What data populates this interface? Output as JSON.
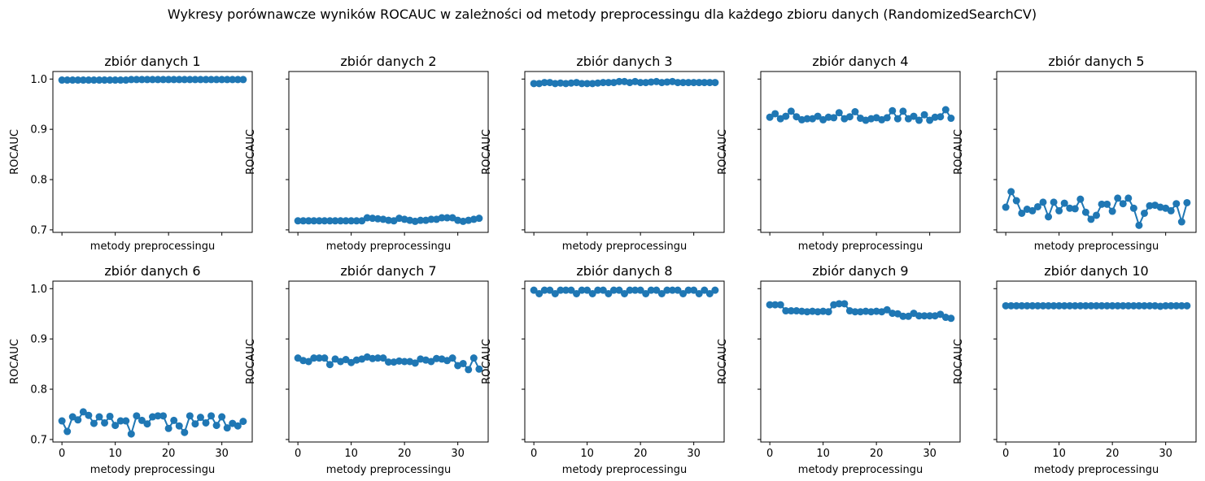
{
  "figure": {
    "suptitle": "Wykresy porównawcze wyników ROCAUC w zależności od metody preprocessingu dla każdego zbioru danych (RandomizedSearchCV)"
  },
  "colors": {
    "series": "#1f77b4",
    "axes": "#000000"
  },
  "chart_data": [
    {
      "type": "line",
      "title": "zbiór danych 1",
      "xlabel": "metody preprocessingu",
      "ylabel": "ROCAUC",
      "xlim": [
        -1.7,
        35.7
      ],
      "ylim": [
        0.695,
        1.015
      ],
      "xticks": [
        0,
        10,
        20,
        30
      ],
      "yticks": [
        0.7,
        0.8,
        0.9,
        1.0
      ],
      "marker": "o",
      "series": [
        {
          "values": [
            0.998,
            0.998,
            0.998,
            0.998,
            0.998,
            0.998,
            0.998,
            0.998,
            0.998,
            0.998,
            0.998,
            0.998,
            0.998,
            0.999,
            0.999,
            0.999,
            0.999,
            0.999,
            0.999,
            0.999,
            0.999,
            0.999,
            0.999,
            0.999,
            0.999,
            0.999,
            0.999,
            0.999,
            0.999,
            0.999,
            0.999,
            0.999,
            0.999,
            0.999,
            0.999
          ]
        }
      ]
    },
    {
      "type": "line",
      "title": "zbiór danych 2",
      "xlabel": "metody preprocessingu",
      "ylabel": "ROCAUC",
      "xlim": [
        -1.7,
        35.7
      ],
      "ylim": [
        0.695,
        1.015
      ],
      "xticks": [
        0,
        10,
        20,
        30
      ],
      "yticks": [
        0.7,
        0.8,
        0.9,
        1.0
      ],
      "marker": "o",
      "series": [
        {
          "values": [
            0.718,
            0.718,
            0.718,
            0.718,
            0.718,
            0.718,
            0.718,
            0.718,
            0.718,
            0.718,
            0.718,
            0.718,
            0.718,
            0.724,
            0.723,
            0.722,
            0.721,
            0.719,
            0.718,
            0.723,
            0.721,
            0.719,
            0.717,
            0.719,
            0.719,
            0.721,
            0.721,
            0.724,
            0.724,
            0.724,
            0.719,
            0.717,
            0.719,
            0.721,
            0.723
          ]
        }
      ]
    },
    {
      "type": "line",
      "title": "zbiór danych 3",
      "xlabel": "metody preprocessingu",
      "ylabel": "ROCAUC",
      "xlim": [
        -1.7,
        35.7
      ],
      "ylim": [
        0.695,
        1.015
      ],
      "xticks": [
        0,
        10,
        20,
        30
      ],
      "yticks": [
        0.7,
        0.8,
        0.9,
        1.0
      ],
      "marker": "o",
      "series": [
        {
          "values": [
            0.991,
            0.991,
            0.993,
            0.993,
            0.991,
            0.992,
            0.991,
            0.992,
            0.993,
            0.991,
            0.991,
            0.991,
            0.992,
            0.993,
            0.993,
            0.993,
            0.995,
            0.995,
            0.993,
            0.995,
            0.993,
            0.993,
            0.994,
            0.995,
            0.993,
            0.994,
            0.995,
            0.993,
            0.993,
            0.993,
            0.993,
            0.993,
            0.993,
            0.993,
            0.993
          ]
        }
      ]
    },
    {
      "type": "line",
      "title": "zbiór danych 4",
      "xlabel": "metody preprocessingu",
      "ylabel": "ROCAUC",
      "xlim": [
        -1.7,
        35.7
      ],
      "ylim": [
        0.695,
        1.015
      ],
      "xticks": [
        0,
        10,
        20,
        30
      ],
      "yticks": [
        0.7,
        0.8,
        0.9,
        1.0
      ],
      "marker": "o",
      "series": [
        {
          "values": [
            0.924,
            0.931,
            0.921,
            0.926,
            0.936,
            0.925,
            0.919,
            0.921,
            0.921,
            0.926,
            0.919,
            0.924,
            0.923,
            0.933,
            0.921,
            0.925,
            0.935,
            0.922,
            0.918,
            0.921,
            0.923,
            0.919,
            0.923,
            0.937,
            0.921,
            0.936,
            0.921,
            0.926,
            0.918,
            0.929,
            0.918,
            0.924,
            0.925,
            0.939,
            0.922
          ]
        }
      ]
    },
    {
      "type": "line",
      "title": "zbiór danych 5",
      "xlabel": "metody preprocessingu",
      "ylabel": "ROCAUC",
      "xlim": [
        -1.7,
        35.7
      ],
      "ylim": [
        0.695,
        1.015
      ],
      "xticks": [
        0,
        10,
        20,
        30
      ],
      "yticks": [
        0.7,
        0.8,
        0.9,
        1.0
      ],
      "marker": "o",
      "series": [
        {
          "values": [
            0.745,
            0.776,
            0.758,
            0.733,
            0.741,
            0.738,
            0.746,
            0.755,
            0.726,
            0.755,
            0.738,
            0.753,
            0.743,
            0.742,
            0.761,
            0.735,
            0.721,
            0.729,
            0.751,
            0.751,
            0.737,
            0.763,
            0.752,
            0.763,
            0.743,
            0.709,
            0.733,
            0.748,
            0.749,
            0.745,
            0.743,
            0.738,
            0.752,
            0.716,
            0.754
          ]
        }
      ]
    },
    {
      "type": "line",
      "title": "zbiór danych 6",
      "xlabel": "metody preprocessingu",
      "ylabel": "ROCAUC",
      "xlim": [
        -1.7,
        35.7
      ],
      "ylim": [
        0.695,
        1.015
      ],
      "xticks": [
        0,
        10,
        20,
        30
      ],
      "yticks": [
        0.7,
        0.8,
        0.9,
        1.0
      ],
      "marker": "o",
      "series": [
        {
          "values": [
            0.737,
            0.716,
            0.745,
            0.739,
            0.755,
            0.748,
            0.732,
            0.745,
            0.733,
            0.746,
            0.728,
            0.737,
            0.737,
            0.711,
            0.747,
            0.738,
            0.731,
            0.745,
            0.747,
            0.747,
            0.722,
            0.738,
            0.727,
            0.714,
            0.747,
            0.731,
            0.744,
            0.733,
            0.747,
            0.728,
            0.745,
            0.723,
            0.732,
            0.727,
            0.736
          ]
        }
      ]
    },
    {
      "type": "line",
      "title": "zbiór danych 7",
      "xlabel": "metody preprocessingu",
      "ylabel": "ROCAUC",
      "xlim": [
        -1.7,
        35.7
      ],
      "ylim": [
        0.695,
        1.015
      ],
      "xticks": [
        0,
        10,
        20,
        30
      ],
      "yticks": [
        0.7,
        0.8,
        0.9,
        1.0
      ],
      "marker": "o",
      "series": [
        {
          "values": [
            0.862,
            0.857,
            0.855,
            0.862,
            0.862,
            0.862,
            0.849,
            0.86,
            0.855,
            0.859,
            0.853,
            0.858,
            0.86,
            0.864,
            0.861,
            0.862,
            0.862,
            0.854,
            0.854,
            0.856,
            0.855,
            0.855,
            0.852,
            0.86,
            0.858,
            0.855,
            0.861,
            0.86,
            0.857,
            0.862,
            0.847,
            0.851,
            0.839,
            0.862,
            0.84
          ]
        }
      ]
    },
    {
      "type": "line",
      "title": "zbiór danych 8",
      "xlabel": "metody preprocessingu",
      "ylabel": "ROCAUC",
      "xlim": [
        -1.7,
        35.7
      ],
      "ylim": [
        0.695,
        1.015
      ],
      "xticks": [
        0,
        10,
        20,
        30
      ],
      "yticks": [
        0.7,
        0.8,
        0.9,
        1.0
      ],
      "marker": "o",
      "series": [
        {
          "values": [
            0.997,
            0.99,
            0.997,
            0.997,
            0.99,
            0.997,
            0.997,
            0.997,
            0.99,
            0.997,
            0.997,
            0.99,
            0.997,
            0.997,
            0.99,
            0.997,
            0.997,
            0.99,
            0.997,
            0.997,
            0.997,
            0.99,
            0.997,
            0.997,
            0.99,
            0.997,
            0.997,
            0.997,
            0.99,
            0.997,
            0.997,
            0.99,
            0.997,
            0.99,
            0.997
          ]
        }
      ]
    },
    {
      "type": "line",
      "title": "zbiór danych 9",
      "xlabel": "metody preprocessingu",
      "ylabel": "ROCAUC",
      "xlim": [
        -1.7,
        35.7
      ],
      "ylim": [
        0.695,
        1.015
      ],
      "xticks": [
        0,
        10,
        20,
        30
      ],
      "yticks": [
        0.7,
        0.8,
        0.9,
        1.0
      ],
      "marker": "o",
      "series": [
        {
          "values": [
            0.968,
            0.968,
            0.968,
            0.956,
            0.956,
            0.956,
            0.955,
            0.954,
            0.955,
            0.954,
            0.955,
            0.954,
            0.968,
            0.97,
            0.97,
            0.956,
            0.954,
            0.954,
            0.955,
            0.954,
            0.955,
            0.954,
            0.958,
            0.951,
            0.95,
            0.945,
            0.945,
            0.951,
            0.946,
            0.946,
            0.946,
            0.946,
            0.949,
            0.943,
            0.941
          ]
        }
      ]
    },
    {
      "type": "line",
      "title": "zbiór danych 10",
      "xlabel": "metody preprocessingu",
      "ylabel": "ROCAUC",
      "xlim": [
        -1.7,
        35.7
      ],
      "ylim": [
        0.695,
        1.015
      ],
      "xticks": [
        0,
        10,
        20,
        30
      ],
      "yticks": [
        0.7,
        0.8,
        0.9,
        1.0
      ],
      "marker": "o",
      "series": [
        {
          "values": [
            0.966,
            0.966,
            0.966,
            0.966,
            0.966,
            0.966,
            0.966,
            0.966,
            0.966,
            0.966,
            0.966,
            0.966,
            0.966,
            0.966,
            0.966,
            0.966,
            0.966,
            0.966,
            0.966,
            0.966,
            0.966,
            0.966,
            0.966,
            0.966,
            0.966,
            0.966,
            0.966,
            0.966,
            0.966,
            0.965,
            0.966,
            0.966,
            0.966,
            0.966,
            0.966
          ]
        }
      ]
    }
  ]
}
